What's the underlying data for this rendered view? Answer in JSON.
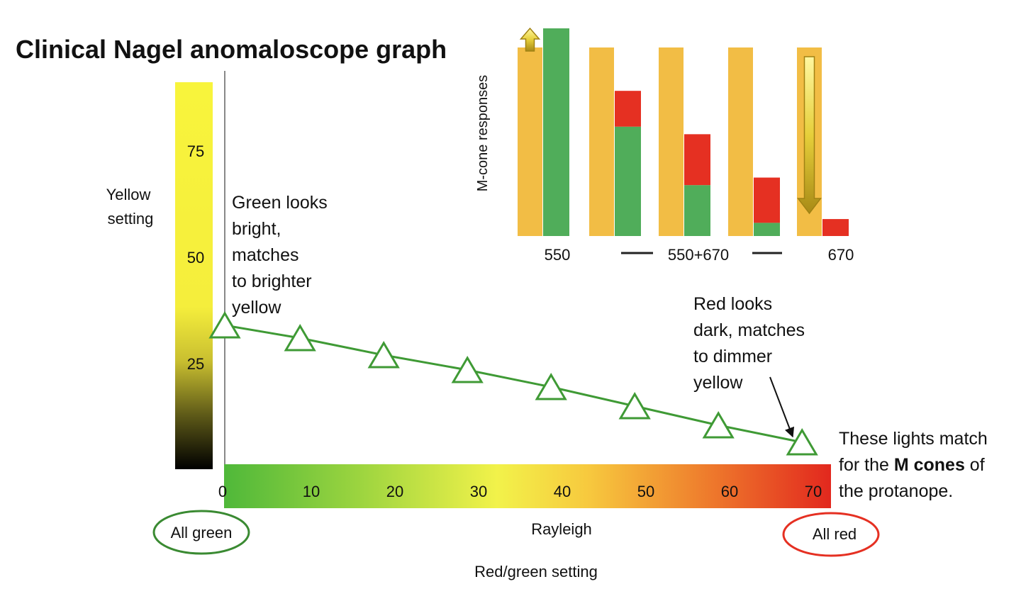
{
  "title": "Clinical Nagel anomaloscope graph",
  "colors": {
    "green_line": "#3f9a35",
    "orange_bar": "#f2bd45",
    "green_bar": "#50ad5a",
    "red_bar": "#e53022",
    "annotation_green": "#3fa04a",
    "all_red_outline": "#e53022",
    "all_green_outline": "#3a8a32"
  },
  "annotations": {
    "green_bright": [
      "Green looks",
      "bright,",
      "matches",
      "to brighter",
      "yellow"
    ],
    "red_dark": [
      "Red looks",
      "dark, matches",
      "to dimmer",
      "yellow"
    ],
    "match_note": {
      "line1": "These lights match",
      "line2_pre": "for the ",
      "line2_bold": "M cones",
      "line2_post": " of",
      "line3": "the protanope."
    },
    "all_green": "All green",
    "all_red": "All red"
  },
  "chart_data": [
    {
      "type": "line",
      "title": "",
      "xlabel": "Red/green setting",
      "x_scale_label": "Rayleigh",
      "ylabel": "Yellow setting",
      "x_ticks": [
        0,
        10,
        20,
        30,
        40,
        50,
        60,
        70
      ],
      "y_ticks": [
        25,
        50,
        75
      ],
      "xlim": [
        0,
        73
      ],
      "ylim": [
        0,
        91
      ],
      "marker": "triangle",
      "series": [
        {
          "x": [
            0,
            9,
            19,
            29,
            39,
            49,
            59,
            69
          ],
          "y": [
            34,
            31,
            27,
            23.5,
            19.5,
            15,
            10.5,
            6.5
          ]
        }
      ]
    },
    {
      "type": "bar",
      "title": "",
      "ylabel": "M-cone responses",
      "category_labels": [
        "550",
        "550+670",
        "670"
      ],
      "stacked": true,
      "groups": [
        {
          "yellow": 100,
          "green": 100,
          "red": 0
        },
        {
          "yellow": 100,
          "green": 58,
          "red": 19
        },
        {
          "yellow": 100,
          "green": 27,
          "red": 27
        },
        {
          "yellow": 100,
          "green": 7,
          "red": 24
        },
        {
          "yellow": 100,
          "green": 0,
          "red": 9
        }
      ],
      "yellow_arrows": [
        "up",
        "down"
      ]
    }
  ]
}
